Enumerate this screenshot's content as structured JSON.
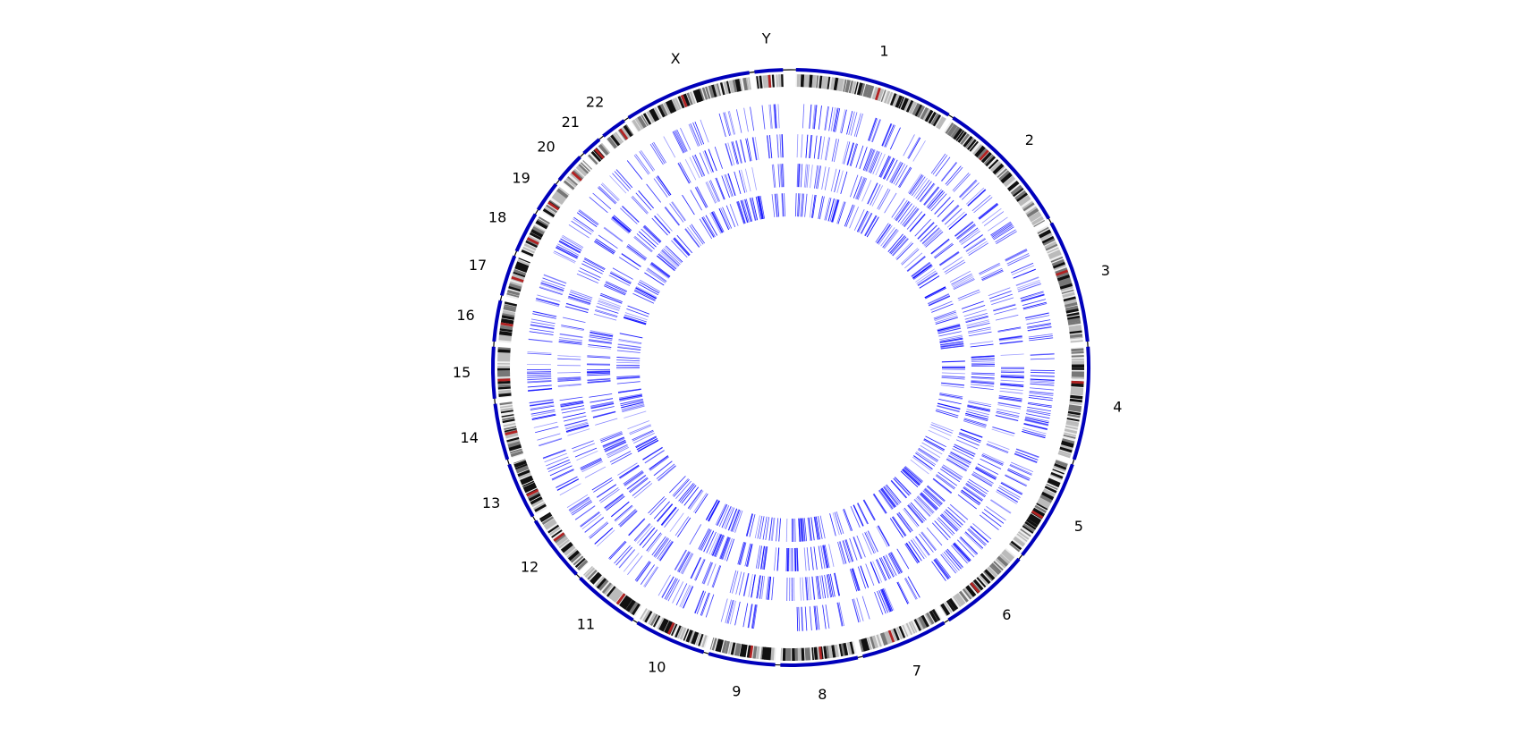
{
  "chromosomes": [
    {
      "name": "1",
      "label": "1"
    },
    {
      "name": "2",
      "label": "2"
    },
    {
      "name": "3",
      "label": "3"
    },
    {
      "name": "4",
      "label": "4"
    },
    {
      "name": "5",
      "label": "5"
    },
    {
      "name": "6",
      "label": "6"
    },
    {
      "name": "7",
      "label": "7"
    },
    {
      "name": "8",
      "label": "8"
    },
    {
      "name": "9",
      "label": "9"
    },
    {
      "name": "10",
      "label": "10"
    },
    {
      "name": "11",
      "label": "11"
    },
    {
      "name": "12",
      "label": "12"
    },
    {
      "name": "13",
      "label": "13"
    },
    {
      "name": "14",
      "label": "14"
    },
    {
      "name": "15",
      "label": "15"
    },
    {
      "name": "16",
      "label": "16"
    },
    {
      "name": "17",
      "label": "17"
    },
    {
      "name": "18",
      "label": "18"
    },
    {
      "name": "19",
      "label": "19"
    },
    {
      "name": "20",
      "label": "20"
    },
    {
      "name": "21",
      "label": "21"
    },
    {
      "name": "22",
      "label": "22"
    },
    {
      "name": "X",
      "label": "X"
    },
    {
      "name": "Y",
      "label": "Y"
    }
  ],
  "colors": {
    "outer_ring": "#0000bb",
    "gap": "#000000",
    "band_dark": "#111111",
    "band_mid": "#777777",
    "band_light": "#bbbbbb",
    "centromere": "#b22222",
    "feature_line": "#0000ff",
    "background": "#ffffff"
  },
  "track_count": 4
}
